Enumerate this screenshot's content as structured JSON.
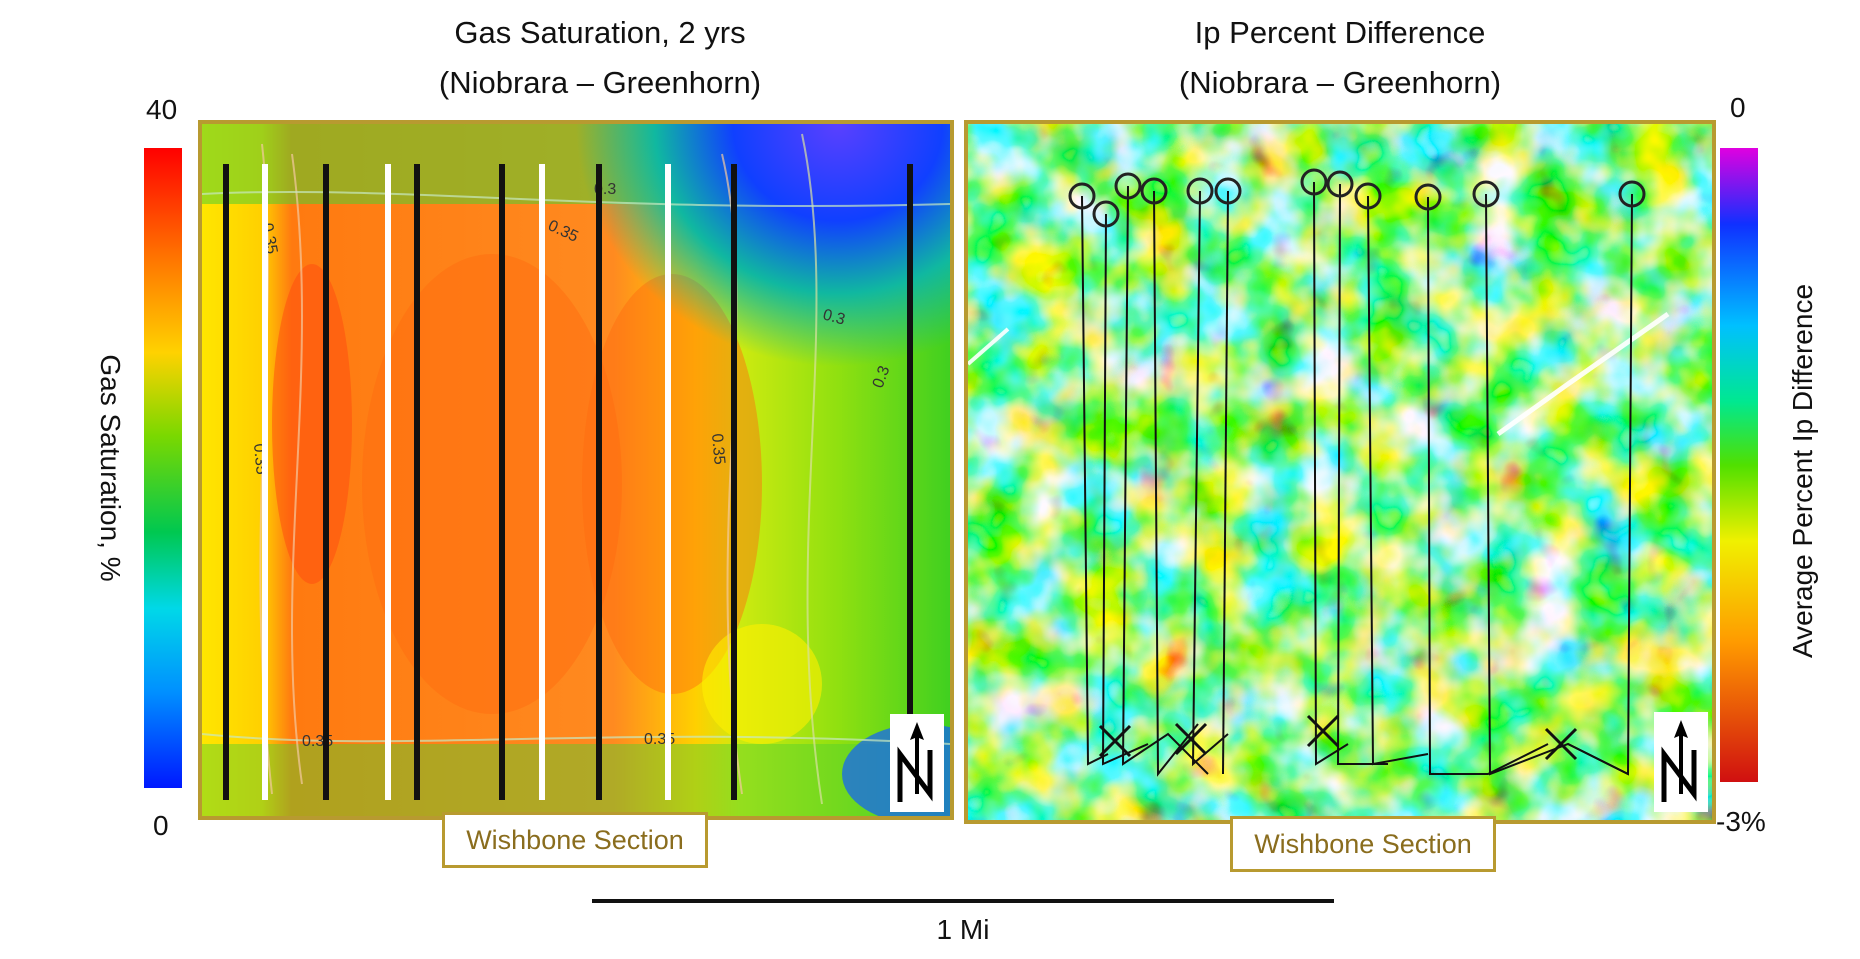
{
  "left_panel": {
    "title_line1": "Gas Saturation, 2 yrs",
    "title_line2": "(Niobrara – Greenhorn)",
    "colorbar": {
      "max_label": "40",
      "min_label": "0",
      "axis_label": "Gas Saturation, %",
      "colors": [
        "#ff0000",
        "#ff7a00",
        "#ffd200",
        "#7ad800",
        "#00c850",
        "#00d8e8",
        "#0090ff",
        "#0018ff"
      ]
    },
    "contour_labels": [
      "0.35",
      "0.35",
      "0.3",
      "0.35",
      "0.3",
      "0.3",
      "0.35",
      "0.35",
      "0.35"
    ],
    "section_label": "Wishbone Section",
    "north_icon": "north-arrow-icon"
  },
  "right_panel": {
    "title_line1": "Ip Percent Difference",
    "title_line2": "(Niobrara – Greenhorn)",
    "colorbar": {
      "max_label": "0",
      "min_label": "-3%",
      "axis_label": "Average Percent Ip Difference",
      "colors": [
        "#e000e0",
        "#1030ff",
        "#00c0ff",
        "#00e890",
        "#50e000",
        "#f0f000",
        "#ff9a00",
        "#d01010"
      ]
    },
    "section_label": "Wishbone Section",
    "north_icon": "north-arrow-icon"
  },
  "scale_bar": {
    "label": "1 Mi"
  }
}
